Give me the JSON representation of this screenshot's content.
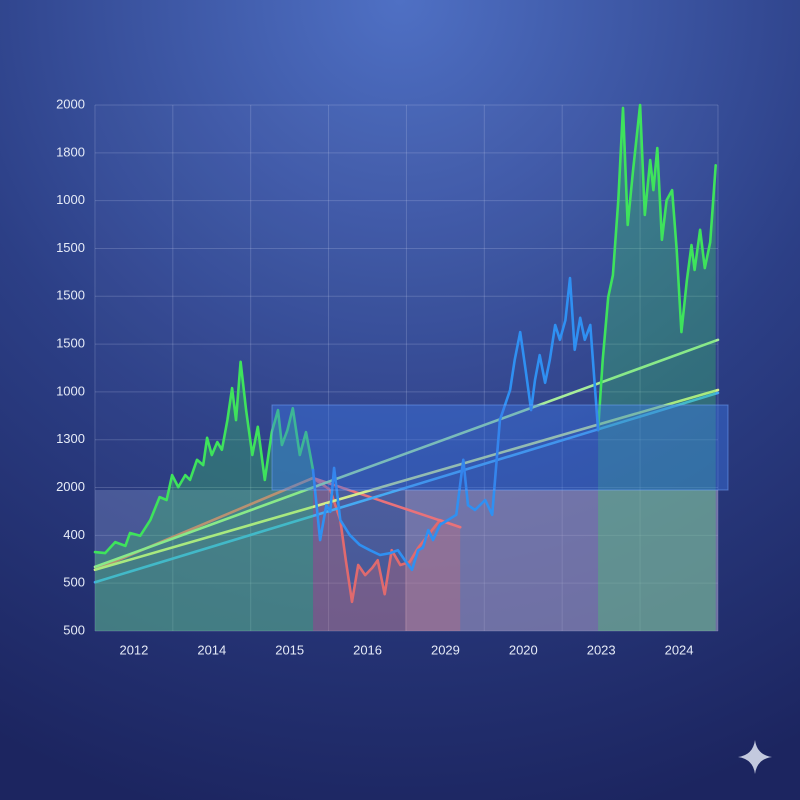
{
  "chart_data": {
    "type": "line",
    "xlim": [
      0,
      8
    ],
    "ylim": [
      0,
      11
    ],
    "xticks": [
      {
        "value": 0.5,
        "label": "2012"
      },
      {
        "value": 1.5,
        "label": "2014"
      },
      {
        "value": 2.5,
        "label": "2015"
      },
      {
        "value": 3.5,
        "label": "2016"
      },
      {
        "value": 4.5,
        "label": "2029"
      },
      {
        "value": 5.5,
        "label": "2020"
      },
      {
        "value": 6.5,
        "label": "2023"
      },
      {
        "value": 7.5,
        "label": "2024"
      }
    ],
    "yticks": [
      {
        "value": 0,
        "label": "500"
      },
      {
        "value": 1,
        "label": "500"
      },
      {
        "value": 2,
        "label": "400"
      },
      {
        "value": 3,
        "label": "2000"
      },
      {
        "value": 4,
        "label": "1300"
      },
      {
        "value": 5,
        "label": "1000"
      },
      {
        "value": 6,
        "label": "1500"
      },
      {
        "value": 7,
        "label": "1500"
      },
      {
        "value": 8,
        "label": "1500"
      },
      {
        "value": 9,
        "label": "1000"
      },
      {
        "value": 10,
        "label": "1800"
      },
      {
        "value": 11,
        "label": "2000"
      }
    ],
    "grid": true,
    "series": [
      {
        "color": "#e06a6e",
        "area": true,
        "x": [
          2.8,
          3.02,
          3.15,
          3.22,
          3.3,
          3.38,
          3.47,
          3.56,
          3.63,
          3.72,
          3.81,
          3.92,
          4.04,
          4.15,
          4.28,
          4.43,
          4.69
        ],
        "values": [
          3.2,
          2.95,
          2.32,
          1.48,
          0.61,
          1.38,
          1.17,
          1.32,
          1.48,
          0.77,
          1.69,
          1.38,
          1.44,
          1.74,
          2.01,
          2.32,
          2.17
        ]
      },
      {
        "color": "#e8727a",
        "area": false,
        "x": [
          0,
          2.8,
          4.69
        ],
        "values": [
          1.28,
          3.2,
          2.17
        ]
      },
      {
        "color": "#a7ec9a",
        "area": false,
        "x": [
          0,
          8
        ],
        "values": [
          1.34,
          6.09
        ]
      },
      {
        "color": "#d2ec8c",
        "area": false,
        "x": [
          0,
          8
        ],
        "values": [
          1.28,
          5.04
        ]
      },
      {
        "color": "#45a9f2",
        "area": false,
        "x": [
          0,
          8
        ],
        "values": [
          1.02,
          4.98
        ]
      },
      {
        "color": "#3ee35c",
        "area": true,
        "x": [
          0,
          0.13,
          0.26,
          0.39,
          0.45,
          0.58,
          0.71,
          0.83,
          0.92,
          0.99,
          1.07,
          1.16,
          1.22,
          1.31,
          1.39,
          1.44,
          1.5,
          1.57,
          1.63,
          1.7,
          1.76,
          1.81,
          1.87,
          1.94,
          2.02,
          2.09,
          2.18,
          2.27,
          2.35,
          2.4,
          2.47,
          2.54,
          2.63,
          2.71,
          2.8,
          null,
          6.46,
          6.52,
          6.59,
          6.65,
          6.72,
          6.78,
          6.84,
          6.91,
          7.0,
          7.06,
          7.13,
          7.17,
          7.22,
          7.28,
          7.34,
          7.41,
          7.47,
          7.53,
          7.6,
          7.66,
          7.7,
          7.77,
          7.83,
          7.9,
          7.97
        ],
        "values": [
          1.65,
          1.63,
          1.86,
          1.78,
          2.05,
          1.99,
          2.32,
          2.8,
          2.74,
          3.26,
          3.01,
          3.26,
          3.16,
          3.58,
          3.47,
          4.04,
          3.68,
          3.95,
          3.79,
          4.41,
          5.08,
          4.41,
          5.63,
          4.62,
          3.68,
          4.27,
          3.16,
          4.16,
          4.62,
          3.89,
          4.2,
          4.66,
          3.68,
          4.16,
          3.37,
          null,
          4.2,
          5.67,
          6.98,
          7.44,
          9.01,
          10.94,
          8.49,
          9.64,
          11.0,
          8.7,
          9.85,
          9.22,
          10.1,
          8.18,
          9.01,
          9.22,
          7.97,
          6.25,
          7.34,
          8.07,
          7.55,
          8.39,
          7.59,
          8.13,
          9.74
        ]
      },
      {
        "color": "#2f90f2",
        "area": false,
        "x": [
          2.8,
          2.89,
          2.97,
          3.02,
          3.07,
          3.15,
          3.27,
          3.4,
          3.53,
          3.66,
          3.79,
          3.89,
          3.98,
          4.07,
          4.15,
          4.21,
          4.28,
          4.34,
          4.43,
          4.53,
          4.64,
          4.73,
          4.79,
          4.88,
          5.01,
          5.1,
          5.2,
          5.33,
          5.39,
          5.46,
          5.53,
          5.6,
          5.65,
          5.71,
          5.78,
          5.84,
          5.91,
          5.97,
          6.04,
          6.1,
          6.16,
          6.23,
          6.29,
          6.36,
          6.46
        ],
        "values": [
          3.37,
          1.9,
          2.63,
          2.49,
          3.41,
          2.32,
          2.01,
          1.8,
          1.69,
          1.59,
          1.63,
          1.69,
          1.48,
          1.28,
          1.69,
          1.74,
          2.11,
          1.9,
          2.22,
          2.32,
          2.43,
          3.58,
          2.63,
          2.53,
          2.74,
          2.43,
          4.41,
          5.04,
          5.67,
          6.25,
          5.46,
          4.62,
          5.25,
          5.77,
          5.19,
          5.67,
          6.4,
          6.09,
          6.5,
          7.38,
          5.88,
          6.55,
          6.09,
          6.4,
          4.2
        ]
      }
    ]
  }
}
